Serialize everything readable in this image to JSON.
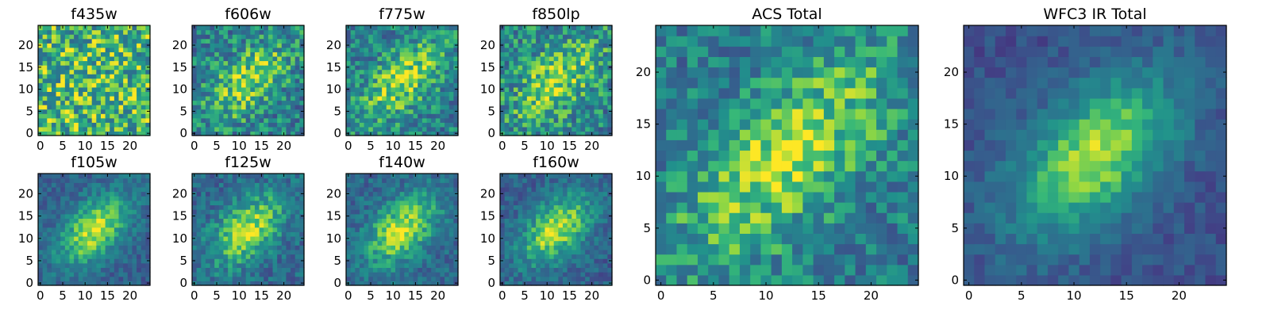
{
  "chart_data": [
    {
      "type": "heatmap",
      "title": "f435w",
      "xlim": [
        0,
        24
      ],
      "ylim": [
        0,
        24
      ],
      "xticks": [
        0,
        5,
        10,
        15,
        20
      ],
      "yticks": [
        0,
        5,
        10,
        15,
        20
      ],
      "colormap": "viridis",
      "size": [
        25,
        25
      ],
      "seed": 11,
      "peak": [
        12,
        12
      ],
      "sigma": [
        5,
        9
      ],
      "amplitude": 0.05,
      "noise": 0.3,
      "base": 0.72
    },
    {
      "type": "heatmap",
      "title": "f606w",
      "xlim": [
        0,
        24
      ],
      "ylim": [
        0,
        24
      ],
      "xticks": [
        0,
        5,
        10,
        15,
        20
      ],
      "yticks": [
        0,
        5,
        10,
        15,
        20
      ],
      "colormap": "viridis",
      "size": [
        25,
        25
      ],
      "seed": 23,
      "peak": [
        12,
        12
      ],
      "sigma": [
        4,
        8
      ],
      "amplitude": 0.35,
      "noise": 0.24,
      "base": 0.52
    },
    {
      "type": "heatmap",
      "title": "f775w",
      "xlim": [
        0,
        24
      ],
      "ylim": [
        0,
        24
      ],
      "xticks": [
        0,
        5,
        10,
        15,
        20
      ],
      "yticks": [
        0,
        5,
        10,
        15,
        20
      ],
      "colormap": "viridis",
      "size": [
        25,
        25
      ],
      "seed": 37,
      "peak": [
        12,
        12
      ],
      "sigma": [
        4,
        8
      ],
      "amplitude": 0.38,
      "noise": 0.22,
      "base": 0.52
    },
    {
      "type": "heatmap",
      "title": "f850lp",
      "xlim": [
        0,
        24
      ],
      "ylim": [
        0,
        24
      ],
      "xticks": [
        0,
        5,
        10,
        15,
        20
      ],
      "yticks": [
        0,
        5,
        10,
        15,
        20
      ],
      "colormap": "viridis",
      "size": [
        25,
        25
      ],
      "seed": 41,
      "peak": [
        12,
        12
      ],
      "sigma": [
        4,
        8
      ],
      "amplitude": 0.35,
      "noise": 0.25,
      "base": 0.55
    },
    {
      "type": "heatmap",
      "title": "ACS Total",
      "xlim": [
        0,
        24
      ],
      "ylim": [
        0,
        24
      ],
      "xticks": [
        0,
        5,
        10,
        15,
        20
      ],
      "yticks": [
        0,
        5,
        10,
        15,
        20
      ],
      "colormap": "viridis",
      "size": [
        25,
        25
      ],
      "seed": 53,
      "peak": [
        12,
        12
      ],
      "sigma": [
        4,
        9
      ],
      "amplitude": 0.42,
      "noise": 0.2,
      "base": 0.5
    },
    {
      "type": "heatmap",
      "title": "f105w",
      "xlim": [
        0,
        24
      ],
      "ylim": [
        0,
        24
      ],
      "xticks": [
        0,
        5,
        10,
        15,
        20
      ],
      "yticks": [
        0,
        5,
        10,
        15,
        20
      ],
      "colormap": "viridis",
      "size": [
        25,
        25
      ],
      "seed": 61,
      "peak": [
        12,
        12
      ],
      "sigma": [
        4,
        7
      ],
      "amplitude": 0.55,
      "noise": 0.13,
      "base": 0.38
    },
    {
      "type": "heatmap",
      "title": "f125w",
      "xlim": [
        0,
        24
      ],
      "ylim": [
        0,
        24
      ],
      "xticks": [
        0,
        5,
        10,
        15,
        20
      ],
      "yticks": [
        0,
        5,
        10,
        15,
        20
      ],
      "colormap": "viridis",
      "size": [
        25,
        25
      ],
      "seed": 67,
      "peak": [
        12,
        12
      ],
      "sigma": [
        4,
        7
      ],
      "amplitude": 0.5,
      "noise": 0.16,
      "base": 0.42
    },
    {
      "type": "heatmap",
      "title": "f140w",
      "xlim": [
        0,
        24
      ],
      "ylim": [
        0,
        24
      ],
      "xticks": [
        0,
        5,
        10,
        15,
        20
      ],
      "yticks": [
        0,
        5,
        10,
        15,
        20
      ],
      "colormap": "viridis",
      "size": [
        25,
        25
      ],
      "seed": 71,
      "peak": [
        12,
        12
      ],
      "sigma": [
        4,
        7
      ],
      "amplitude": 0.5,
      "noise": 0.15,
      "base": 0.42
    },
    {
      "type": "heatmap",
      "title": "f160w",
      "xlim": [
        0,
        24
      ],
      "ylim": [
        0,
        24
      ],
      "xticks": [
        0,
        5,
        10,
        15,
        20
      ],
      "yticks": [
        0,
        5,
        10,
        15,
        20
      ],
      "colormap": "viridis",
      "size": [
        25,
        25
      ],
      "seed": 79,
      "peak": [
        12,
        12
      ],
      "sigma": [
        4,
        7
      ],
      "amplitude": 0.55,
      "noise": 0.14,
      "base": 0.38
    },
    {
      "type": "heatmap",
      "title": "WFC3 IR Total",
      "xlim": [
        0,
        24
      ],
      "ylim": [
        0,
        24
      ],
      "xticks": [
        0,
        5,
        10,
        15,
        20
      ],
      "yticks": [
        0,
        5,
        10,
        15,
        20
      ],
      "colormap": "viridis",
      "size": [
        25,
        25
      ],
      "seed": 83,
      "peak": [
        12,
        12
      ],
      "sigma": [
        4,
        7
      ],
      "amplitude": 0.6,
      "noise": 0.1,
      "base": 0.3
    }
  ]
}
